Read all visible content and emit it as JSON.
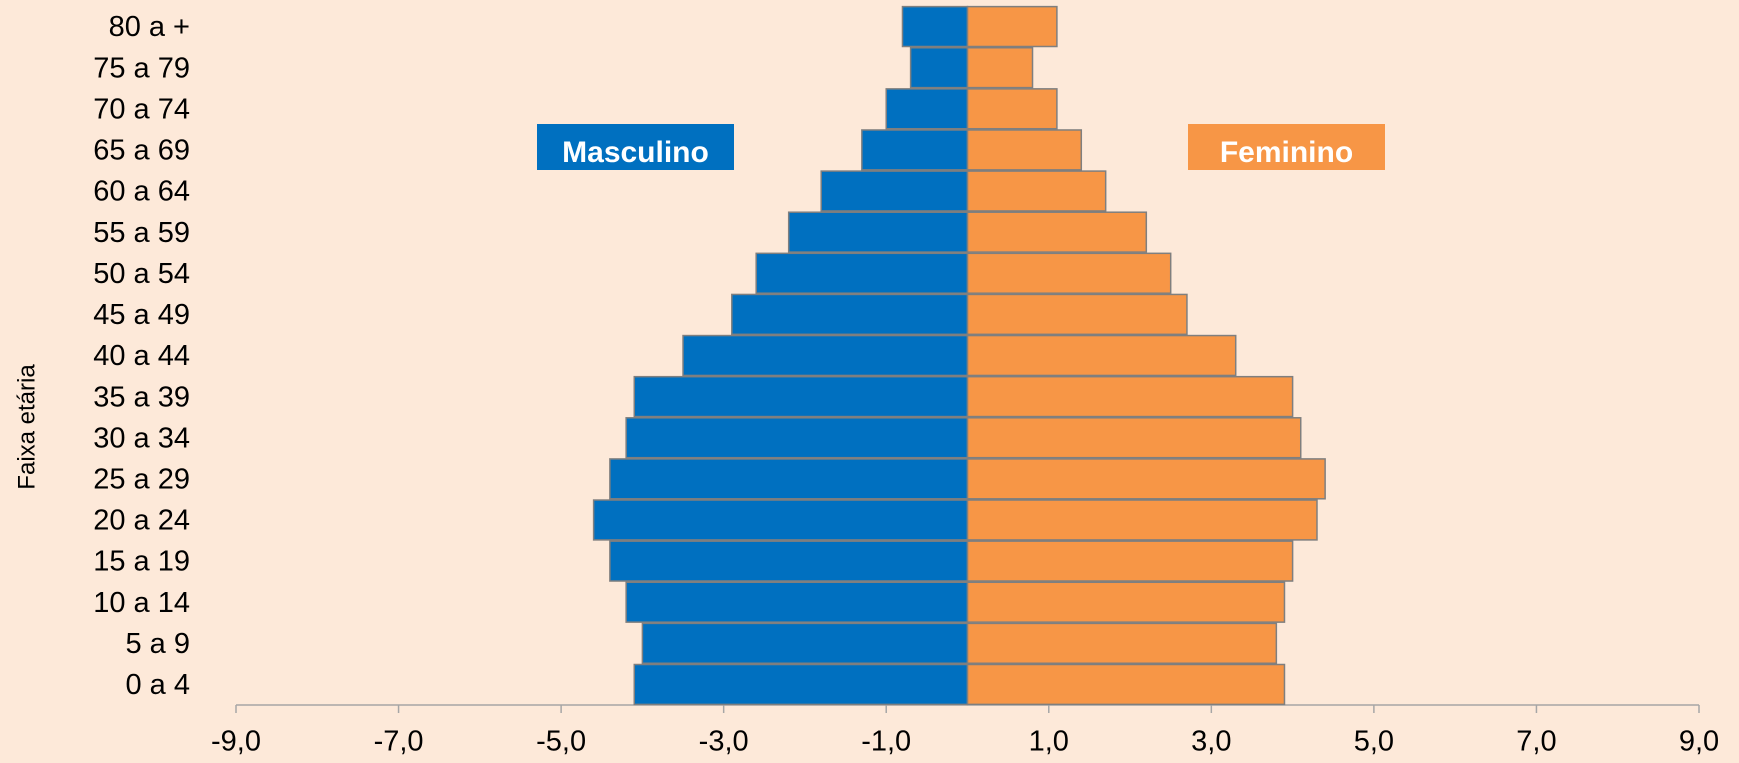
{
  "chart_data": {
    "type": "pyramid",
    "y_axis_label": "Faixa etária",
    "categories": [
      "0 a 4",
      "5 a 9",
      "10 a 14",
      "15 a 19",
      "20 a 24",
      "25 a 29",
      "30 a 34",
      "35 a 39",
      "40 a 44",
      "45 a 49",
      "50 a 54",
      "55 a 59",
      "60 a 64",
      "65 a 69",
      "70 a 74",
      "75 a 79",
      "80 a +"
    ],
    "series": [
      {
        "name": "Masculino",
        "color": "#0070c0",
        "values": [
          -4.1,
          -4.0,
          -4.2,
          -4.4,
          -4.6,
          -4.4,
          -4.2,
          -4.1,
          -3.5,
          -2.9,
          -2.6,
          -2.2,
          -1.8,
          -1.3,
          -1.0,
          -0.7,
          -0.8
        ]
      },
      {
        "name": "Feminino",
        "color": "#f79646",
        "values": [
          3.9,
          3.8,
          3.9,
          4.0,
          4.3,
          4.4,
          4.1,
          4.0,
          3.3,
          2.7,
          2.5,
          2.2,
          1.7,
          1.4,
          1.1,
          0.8,
          1.1
        ]
      }
    ],
    "xlim": [
      -9,
      9
    ],
    "xticks": [
      {
        "value": -9,
        "label": "-9,0"
      },
      {
        "value": -7,
        "label": "-7,0"
      },
      {
        "value": -5,
        "label": "-5,0"
      },
      {
        "value": -3,
        "label": "-3,0"
      },
      {
        "value": -1,
        "label": "-1,0"
      },
      {
        "value": 1,
        "label": "1,0"
      },
      {
        "value": 3,
        "label": "3,0"
      },
      {
        "value": 5,
        "label": "5,0"
      },
      {
        "value": 7,
        "label": "7,0"
      },
      {
        "value": 9,
        "label": "9,0"
      }
    ]
  }
}
